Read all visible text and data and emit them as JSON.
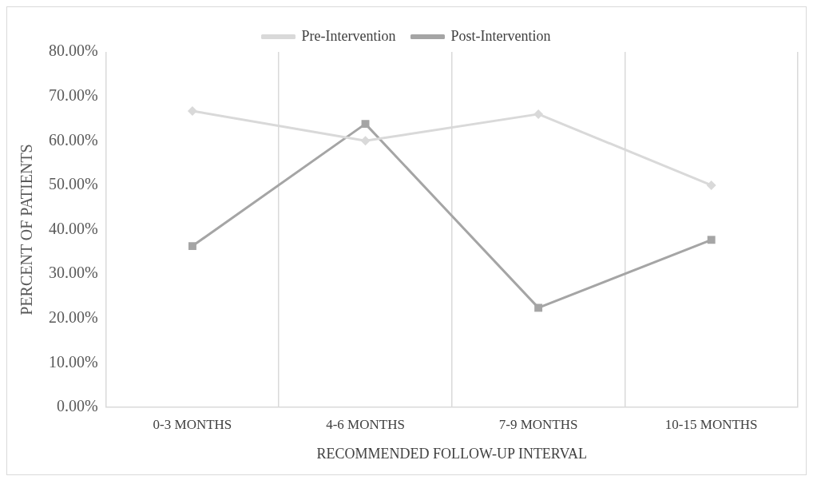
{
  "chart_data": {
    "type": "line",
    "xlabel": "RECOMMENDED FOLLOW-UP INTERVAL",
    "ylabel": "PERCENT OF PATIENTS",
    "categories": [
      "0-3 MONTHS",
      "4-6 MONTHS",
      "7-9 MONTHS",
      "10-15 MONTHS"
    ],
    "series": [
      {
        "name": "Pre-Intervention",
        "color": "#d9d9d9",
        "marker": "diamond",
        "values": [
          66.7,
          60.0,
          66.0,
          50.0
        ]
      },
      {
        "name": "Post-Intervention",
        "color": "#a5a5a5",
        "marker": "square",
        "values": [
          36.3,
          63.8,
          22.4,
          37.7
        ]
      }
    ],
    "ylim": [
      0,
      80
    ],
    "yticks": [
      {
        "value": 0,
        "label": "0.00%"
      },
      {
        "value": 10,
        "label": "10.00%"
      },
      {
        "value": 20,
        "label": "20.00%"
      },
      {
        "value": 30,
        "label": "30.00%"
      },
      {
        "value": 40,
        "label": "40.00%"
      },
      {
        "value": 50,
        "label": "50.00%"
      },
      {
        "value": 60,
        "label": "60.00%"
      },
      {
        "value": 70,
        "label": "70.00%"
      },
      {
        "value": 80,
        "label": "80.00%"
      }
    ],
    "grid": "x",
    "legend": "top",
    "line_style": "solid"
  }
}
